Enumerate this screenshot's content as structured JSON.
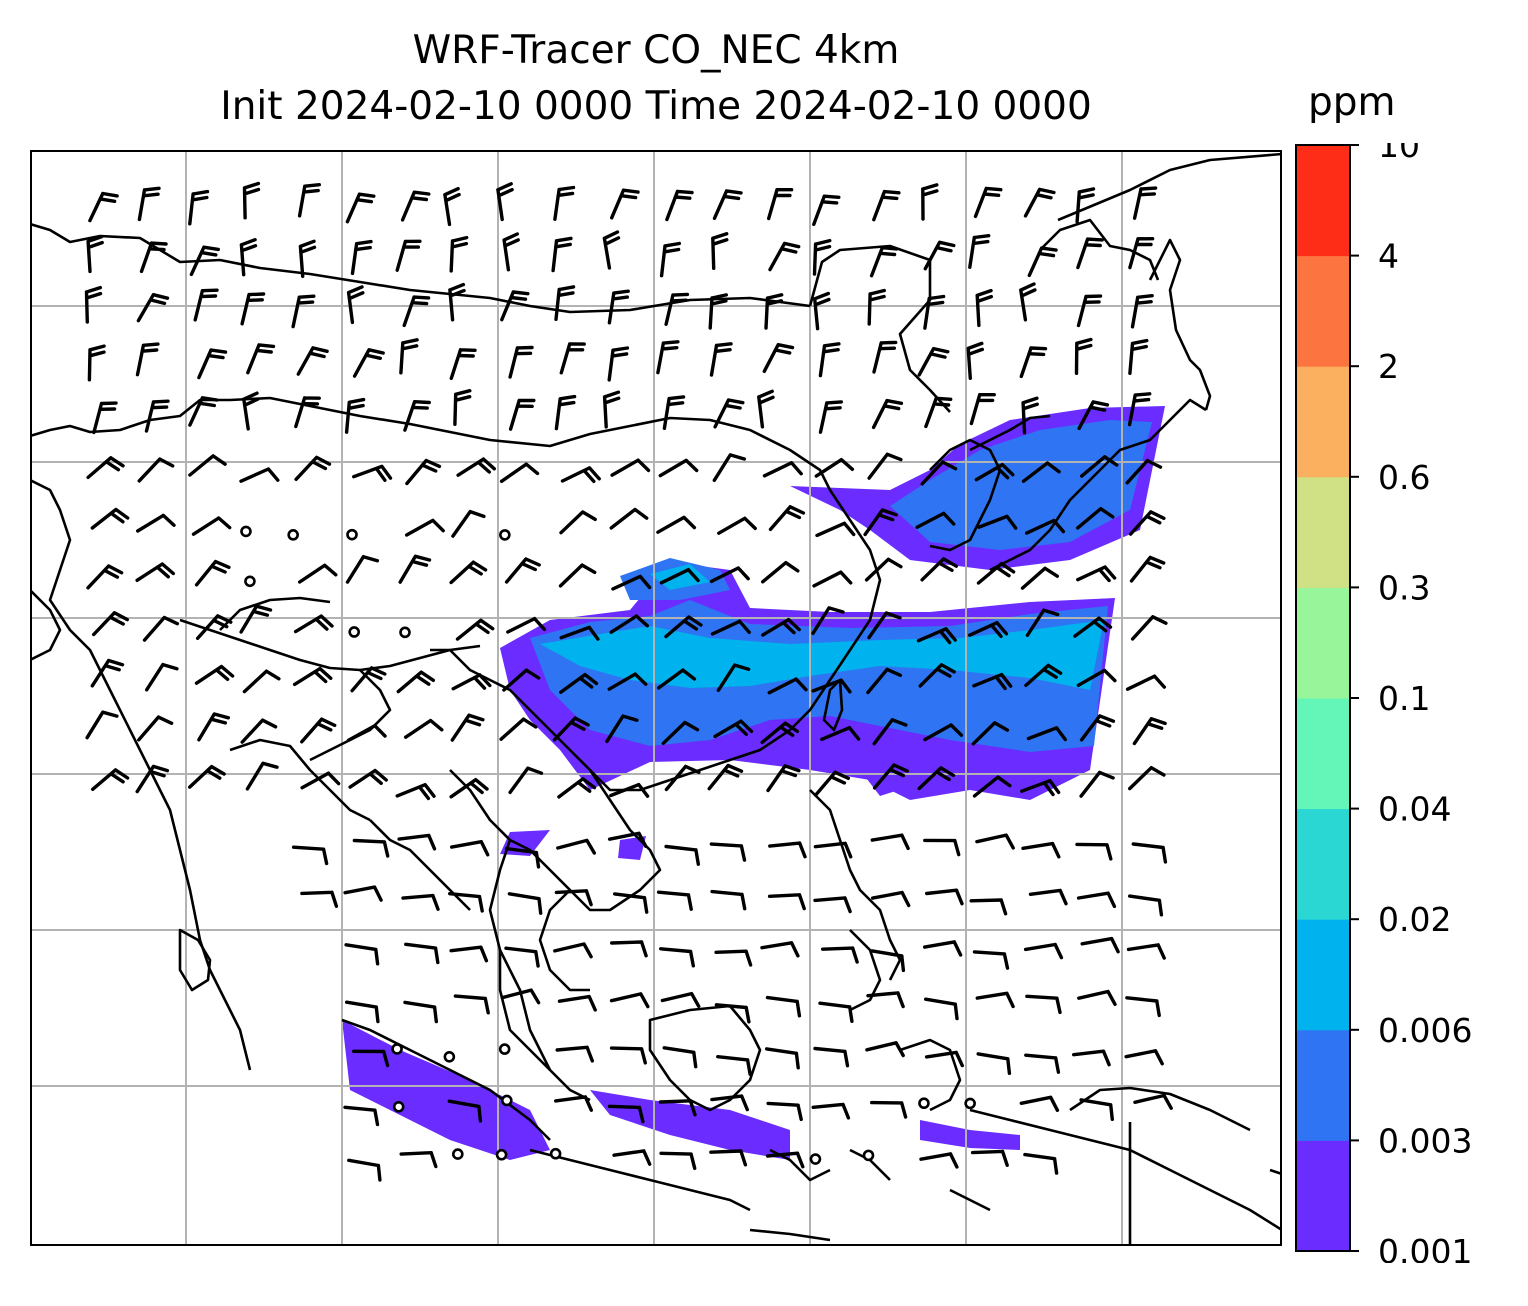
{
  "title": {
    "line1": "WRF-Tracer CO_NEC 4km",
    "line2": "Init 2024-02-10 0000 Time 2024-02-10 0000"
  },
  "colorbar": {
    "unit": "ppm",
    "levels": [
      "0.001",
      "0.003",
      "0.006",
      "0.02",
      "0.04",
      "0.1",
      "0.3",
      "0.6",
      "2",
      "4",
      "10"
    ],
    "colors": [
      "#6a2cff",
      "#2f74f2",
      "#00b2ee",
      "#2ad7d2",
      "#64f5b8",
      "#98f59a",
      "#cfe085",
      "#fbb060",
      "#fc7440",
      "#fd2d18"
    ]
  },
  "map": {
    "grid": "on",
    "grid_color": "#b3b3b3",
    "coastline_color": "#000000",
    "tracer_region_colors": {
      "light": "#6a2cff",
      "mid": "#2f74f2",
      "core": "#00b2ee"
    },
    "wind_barbs": "black",
    "calm_marker": "open circle"
  }
}
